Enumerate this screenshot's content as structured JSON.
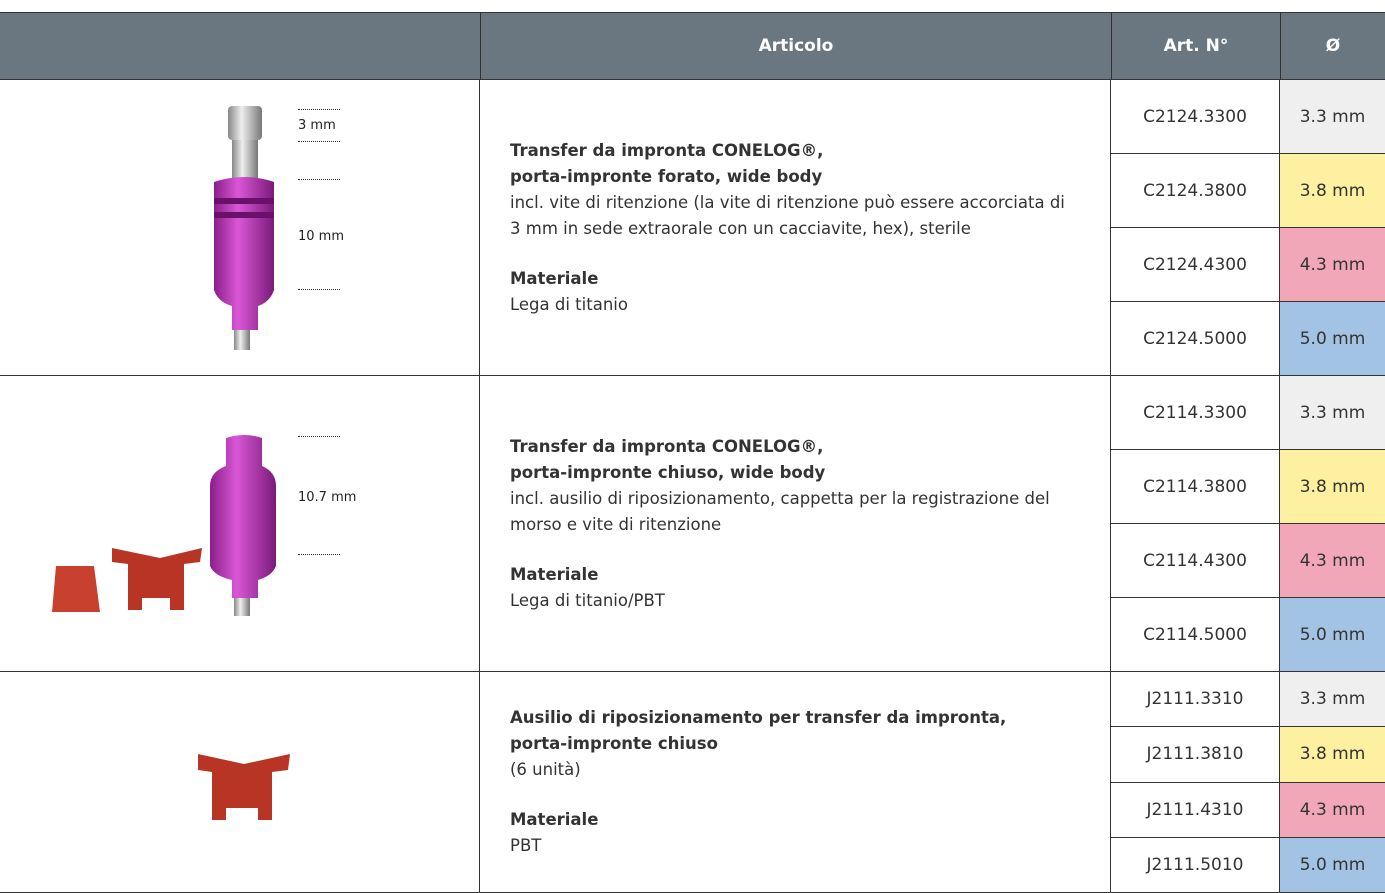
{
  "header": {
    "article": "Articolo",
    "art_no": "Art. N°",
    "diameter": "Ø"
  },
  "rows": [
    {
      "dims": [
        "3 mm",
        "10 mm"
      ],
      "title": [
        "Transfer da impronta CONELOG®,",
        "porta-impronte forato, wide body"
      ],
      "description": "incl. vite di ritenzione (la vite di ritenzione può essere accorciata di 3 mm in sede extraorale con un cacciavite, hex), sterile",
      "material_label": "Materiale",
      "material": "Lega di titanio",
      "variants": [
        {
          "art": "C2124.3300",
          "diameter": "3.3 mm"
        },
        {
          "art": "C2124.3800",
          "diameter": "3.8 mm"
        },
        {
          "art": "C2124.4300",
          "diameter": "4.3 mm"
        },
        {
          "art": "C2124.5000",
          "diameter": "5.0 mm"
        }
      ]
    },
    {
      "dims": [
        "10.7 mm"
      ],
      "title": [
        "Transfer da impronta CONELOG®,",
        "porta-impronte chiuso, wide body"
      ],
      "description": "incl. ausilio di riposizionamento, cappetta per la registrazione del morso e vite di ritenzione",
      "material_label": "Materiale",
      "material": "Lega di titanio/PBT",
      "variants": [
        {
          "art": "C2114.3300",
          "diameter": "3.3 mm"
        },
        {
          "art": "C2114.3800",
          "diameter": "3.8 mm"
        },
        {
          "art": "C2114.4300",
          "diameter": "4.3 mm"
        },
        {
          "art": "C2114.5000",
          "diameter": "5.0 mm"
        }
      ]
    },
    {
      "title": [
        "Ausilio di riposizionamento per transfer da impronta,",
        "porta-impronte chiuso"
      ],
      "description": "(6 unità)",
      "material_label": "Materiale",
      "material": "PBT",
      "variants": [
        {
          "art": "J2111.3310",
          "diameter": "3.3 mm"
        },
        {
          "art": "J2111.3810",
          "diameter": "3.8 mm"
        },
        {
          "art": "J2111.4310",
          "diameter": "4.3 mm"
        },
        {
          "art": "J2111.5010",
          "diameter": "5.0 mm"
        }
      ]
    }
  ]
}
